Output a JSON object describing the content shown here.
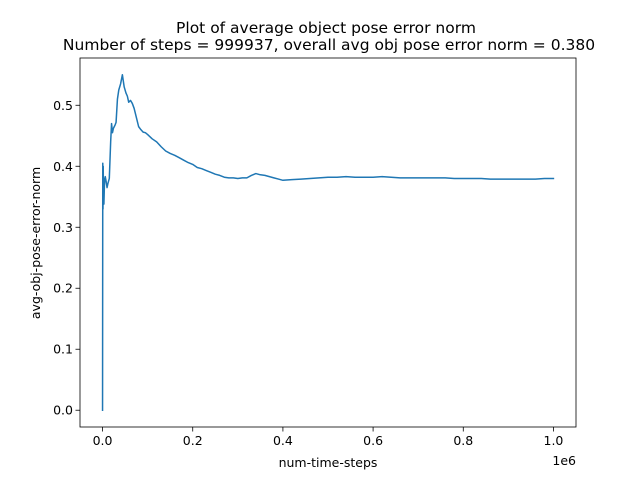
{
  "chart_data": {
    "type": "line",
    "title_line1": "Plot of average object pose error norm",
    "title_line2": "Number of steps = 999937, overall avg obj pose error norm = 0.380",
    "xlabel": "num-time-steps",
    "ylabel": "avg-obj-pose-error-norm",
    "x_offset_label": "1e6",
    "xlim": [
      -0.05,
      1.05
    ],
    "ylim": [
      -0.0275,
      0.5775
    ],
    "x_ticks": [
      {
        "value": 0.0,
        "label": "0.0"
      },
      {
        "value": 0.2,
        "label": "0.2"
      },
      {
        "value": 0.4,
        "label": "0.4"
      },
      {
        "value": 0.6,
        "label": "0.6"
      },
      {
        "value": 0.8,
        "label": "0.8"
      },
      {
        "value": 1.0,
        "label": "1.0"
      }
    ],
    "y_ticks": [
      {
        "value": 0.0,
        "label": "0.0"
      },
      {
        "value": 0.1,
        "label": "0.1"
      },
      {
        "value": 0.2,
        "label": "0.2"
      },
      {
        "value": 0.3,
        "label": "0.3"
      },
      {
        "value": 0.4,
        "label": "0.4"
      },
      {
        "value": 0.5,
        "label": "0.5"
      }
    ],
    "grid": false,
    "series": [
      {
        "color": "#1f77b4",
        "x": [
          0.0,
          0.0005,
          0.001,
          0.0015,
          0.002,
          0.0025,
          0.003,
          0.004,
          0.005,
          0.006,
          0.008,
          0.01,
          0.012,
          0.015,
          0.018,
          0.02,
          0.022,
          0.024,
          0.026,
          0.028,
          0.03,
          0.033,
          0.036,
          0.04,
          0.044,
          0.048,
          0.052,
          0.055,
          0.058,
          0.062,
          0.066,
          0.07,
          0.075,
          0.08,
          0.085,
          0.09,
          0.095,
          0.1,
          0.11,
          0.12,
          0.13,
          0.14,
          0.15,
          0.16,
          0.17,
          0.18,
          0.19,
          0.2,
          0.21,
          0.22,
          0.23,
          0.24,
          0.25,
          0.26,
          0.27,
          0.28,
          0.29,
          0.3,
          0.31,
          0.32,
          0.33,
          0.34,
          0.35,
          0.36,
          0.37,
          0.38,
          0.39,
          0.4,
          0.42,
          0.44,
          0.46,
          0.48,
          0.5,
          0.52,
          0.54,
          0.56,
          0.58,
          0.6,
          0.62,
          0.64,
          0.66,
          0.68,
          0.7,
          0.72,
          0.74,
          0.76,
          0.78,
          0.8,
          0.82,
          0.84,
          0.86,
          0.88,
          0.9,
          0.92,
          0.94,
          0.96,
          0.98,
          0.999937
        ],
        "y": [
          0.0,
          0.405,
          0.33,
          0.4,
          0.35,
          0.36,
          0.338,
          0.365,
          0.38,
          0.383,
          0.375,
          0.365,
          0.372,
          0.38,
          0.44,
          0.47,
          0.455,
          0.462,
          0.465,
          0.468,
          0.472,
          0.51,
          0.525,
          0.535,
          0.55,
          0.53,
          0.52,
          0.515,
          0.505,
          0.508,
          0.503,
          0.495,
          0.48,
          0.465,
          0.46,
          0.456,
          0.455,
          0.452,
          0.445,
          0.44,
          0.432,
          0.425,
          0.421,
          0.418,
          0.414,
          0.41,
          0.406,
          0.403,
          0.398,
          0.396,
          0.393,
          0.39,
          0.387,
          0.385,
          0.382,
          0.381,
          0.381,
          0.38,
          0.381,
          0.381,
          0.385,
          0.388,
          0.386,
          0.385,
          0.383,
          0.381,
          0.379,
          0.377,
          0.378,
          0.379,
          0.38,
          0.381,
          0.382,
          0.382,
          0.383,
          0.382,
          0.382,
          0.382,
          0.383,
          0.382,
          0.381,
          0.381,
          0.381,
          0.381,
          0.381,
          0.381,
          0.38,
          0.38,
          0.38,
          0.38,
          0.379,
          0.379,
          0.379,
          0.379,
          0.379,
          0.379,
          0.38,
          0.38
        ]
      }
    ]
  }
}
